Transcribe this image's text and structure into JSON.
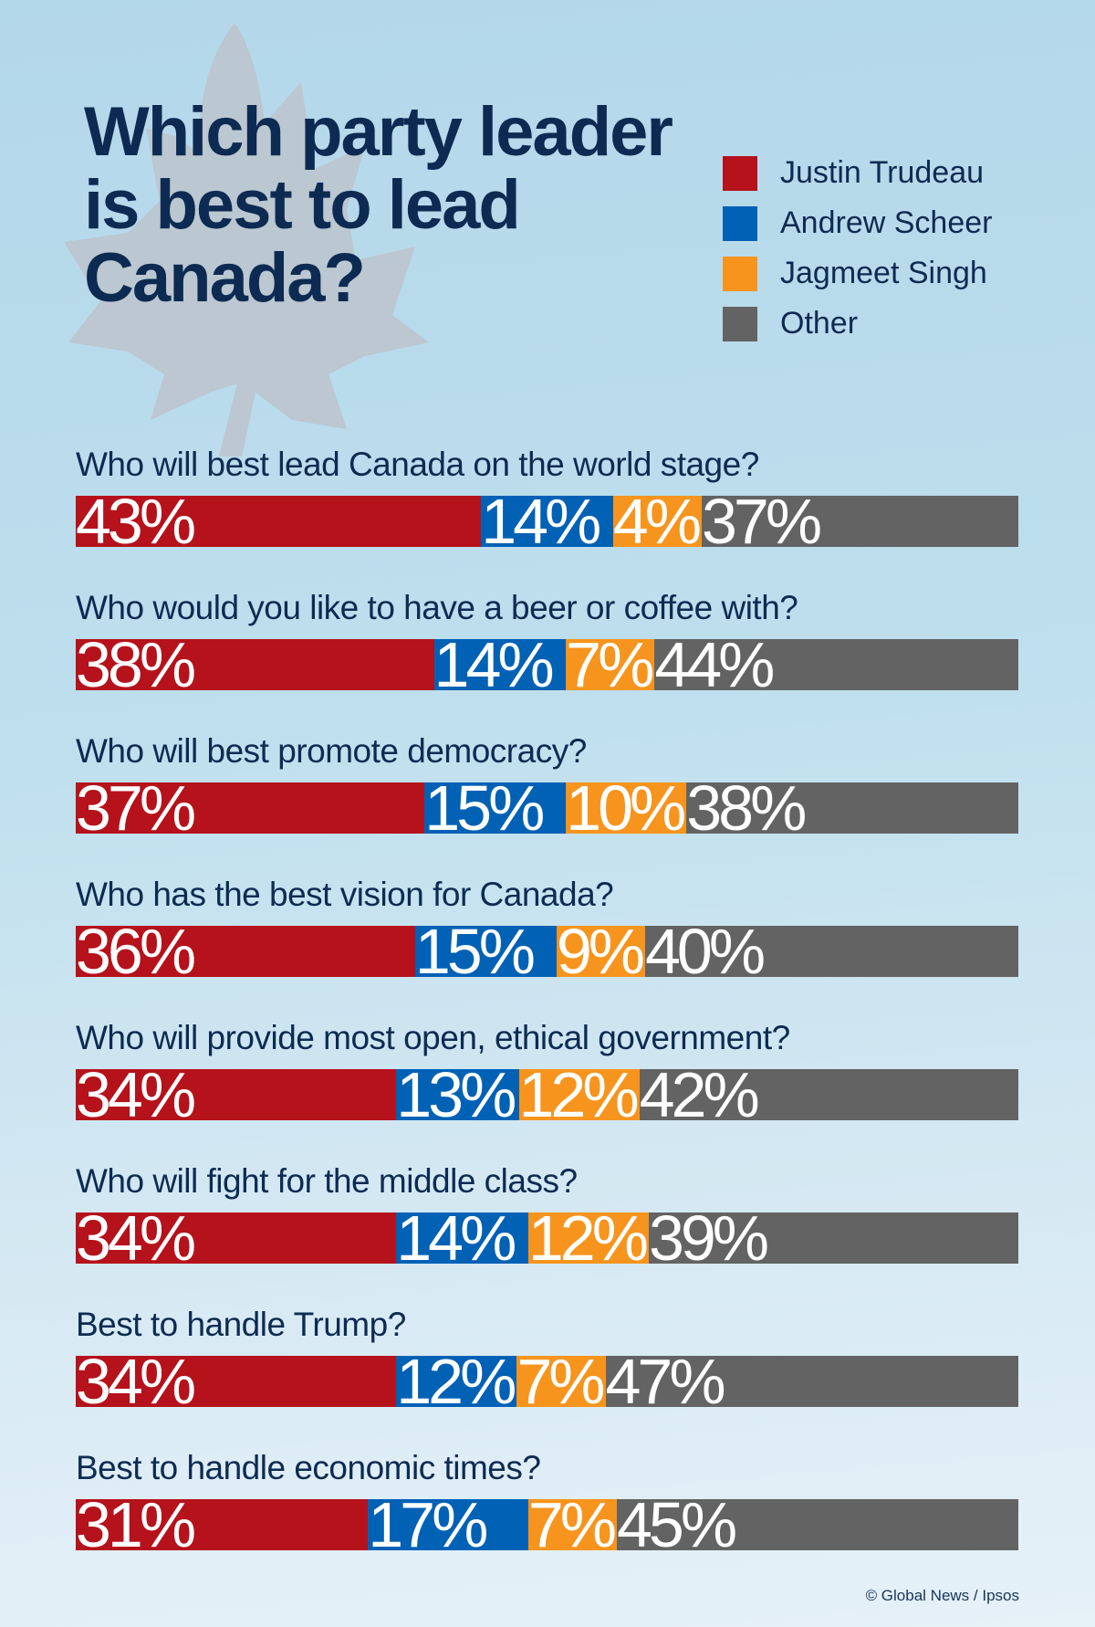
{
  "colors": {
    "trudeau": "#b5121b",
    "scheer": "#0061b5",
    "singh": "#f7941d",
    "other": "#636363",
    "leaf": "#bcc3cc"
  },
  "chart_data": {
    "type": "bar",
    "orientation": "horizontal-stacked",
    "title": "Which party leader is best to lead Canada?",
    "legend": [
      "Justin Trudeau",
      "Andrew Scheer",
      "Jagmeet Singh",
      "Other"
    ],
    "legend_position": "top-right",
    "categories": [
      "Who will best lead Canada on the world stage?",
      "Who would you like to have a beer or coffee with?",
      "Who will best promote democracy?",
      "Who has the best vision for Canada?",
      "Who will provide most open, ethical government?",
      "Who will fight for the middle class?",
      "Best to handle Trump?",
      "Best to handle economic times?"
    ],
    "series": [
      {
        "name": "Justin Trudeau",
        "values": [
          43,
          38,
          37,
          36,
          34,
          34,
          34,
          31
        ]
      },
      {
        "name": "Andrew Scheer",
        "values": [
          14,
          14,
          15,
          15,
          13,
          14,
          12,
          17
        ]
      },
      {
        "name": "Jagmeet Singh",
        "values": [
          4,
          7,
          10,
          9,
          12,
          12,
          7,
          7
        ]
      },
      {
        "name": "Other",
        "values": [
          37,
          44,
          38,
          40,
          42,
          39,
          47,
          45
        ]
      }
    ],
    "unit": "%"
  },
  "footer": "© Global News / Ipsos"
}
